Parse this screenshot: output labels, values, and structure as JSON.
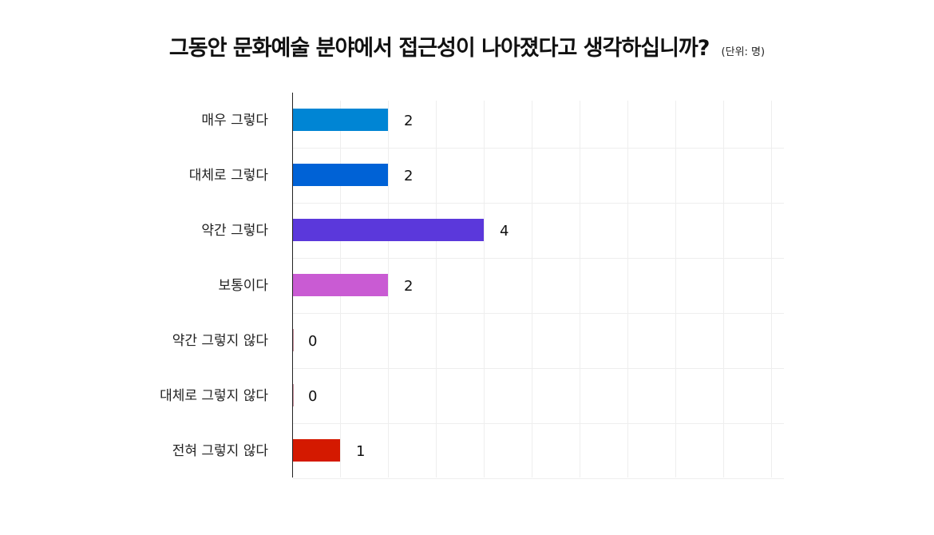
{
  "chart_data": {
    "type": "bar",
    "orientation": "horizontal",
    "title": "그동안 문화예술 분야에서 접근성이 나아졌다고 생각하십니까?",
    "unit": "(단위: 명)",
    "categories": [
      "매우 그렇다",
      "대체로 그렇다",
      "약간 그렇다",
      "보통이다",
      "약간 그렇지 않다",
      "대체로 그렇지 않다",
      "전혀 그렇지 않다"
    ],
    "values": [
      2,
      2,
      4,
      2,
      0,
      0,
      1
    ],
    "colors": [
      "#0085D4",
      "#0062D6",
      "#5B38DB",
      "#C95BD3",
      "#8B1F3A",
      "#8B1F3A",
      "#D41900"
    ],
    "xlim": [
      0,
      10
    ],
    "grid": true,
    "legend": "none"
  }
}
